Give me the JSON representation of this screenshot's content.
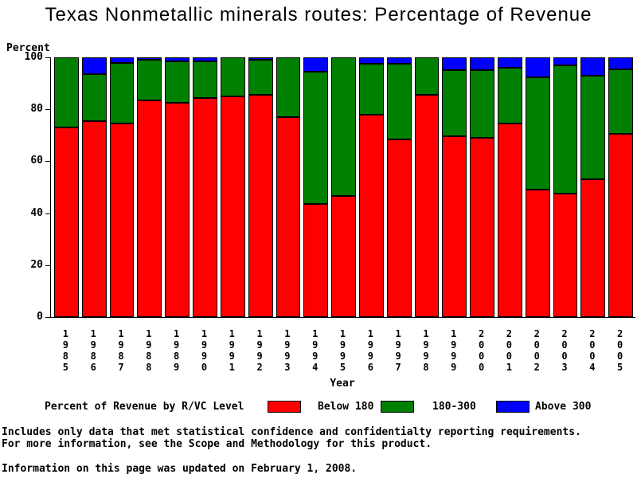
{
  "title": "Texas Nonmetallic minerals routes: Percentage of Revenue",
  "chart_data": {
    "type": "bar",
    "stacked": true,
    "title": "Texas Nonmetallic minerals routes: Percentage of Revenue",
    "xlabel": "Year",
    "ylabel": "Percent",
    "ylim": [
      0,
      100
    ],
    "yticks": [
      0,
      20,
      40,
      60,
      80,
      100
    ],
    "grid": false,
    "legend_position": "bottom",
    "categories": [
      1985,
      1986,
      1987,
      1988,
      1989,
      1990,
      1991,
      1992,
      1993,
      1994,
      1995,
      1996,
      1997,
      1998,
      1999,
      2000,
      2001,
      2002,
      2003,
      2004,
      2005
    ],
    "series": [
      {
        "name": "Below 180",
        "color": "#ff0000",
        "values": [
          73,
          75.5,
          74.5,
          83.5,
          82.5,
          84.5,
          85,
          85.5,
          77,
          43.5,
          46.5,
          78,
          68.5,
          85.5,
          69.5,
          69,
          74.5,
          49,
          47.5,
          53,
          70.5
        ]
      },
      {
        "name": "180-300",
        "color": "#008000",
        "values": [
          27,
          18,
          23.5,
          15.5,
          16,
          14,
          15,
          13.5,
          23,
          51,
          53.5,
          19.5,
          29,
          14.5,
          25.5,
          26,
          21.5,
          43.5,
          49.5,
          40,
          25
        ]
      },
      {
        "name": "Above 300",
        "color": "#0000ff",
        "values": [
          0,
          6.5,
          2,
          1,
          1.5,
          1.5,
          0,
          1,
          0,
          5.5,
          0,
          2.5,
          2.5,
          0,
          5,
          5,
          4,
          7.5,
          3,
          7,
          4.5
        ]
      }
    ]
  },
  "y_axis": {
    "label": "Percent"
  },
  "x_axis": {
    "label": "Year"
  },
  "legend": {
    "title": "Percent of Revenue by R/VC Level",
    "items": [
      {
        "label": "Below 180",
        "color": "#ff0000"
      },
      {
        "label": "180-300",
        "color": "#008000"
      },
      {
        "label": "Above 300",
        "color": "#0000ff"
      }
    ]
  },
  "footnotes": {
    "line1": "Includes only data that met statistical confidence and confidentialty reporting requirements.",
    "line2": "For more information, see the Scope and Methodology for this product.",
    "updated": "Information on this page was updated on February 1, 2008."
  }
}
